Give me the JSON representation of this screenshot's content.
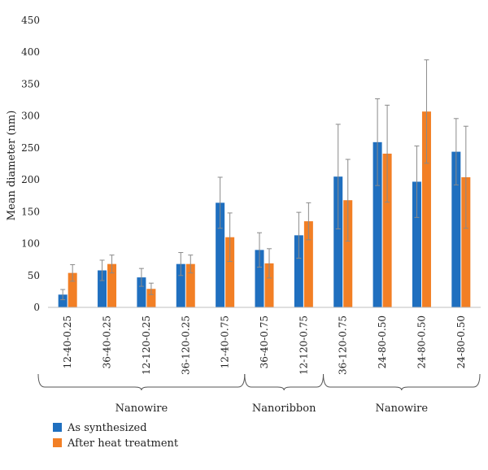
{
  "chart_data": {
    "type": "bar",
    "title": "",
    "xlabel": "",
    "ylabel": "Mean diameter (nm)",
    "ylim": [
      0,
      450
    ],
    "yticks": [
      0,
      50,
      100,
      150,
      200,
      250,
      300,
      350,
      400,
      450
    ],
    "grid": false,
    "legend_position": "bottom-left",
    "categories": [
      "12-40-0.25",
      "36-40-0.25",
      "12-120-0.25",
      "36-120-0.25",
      "12-40-0.75",
      "36-40-0.75",
      "12-120-0.75",
      "36-120-0.75",
      "24-80-0.50",
      "24-80-0.50",
      "24-80-0.50"
    ],
    "series": [
      {
        "name": "As synthesized",
        "color": "#1f6fbf",
        "values": [
          20,
          58,
          47,
          68,
          164,
          90,
          113,
          205,
          259,
          197,
          244
        ],
        "error": [
          8,
          16,
          14,
          18,
          40,
          27,
          36,
          82,
          68,
          56,
          52
        ]
      },
      {
        "name": "After heat treatment",
        "color": "#f27f25",
        "values": [
          54,
          68,
          29,
          68,
          110,
          69,
          135,
          168,
          241,
          307,
          204
        ]
      }
    ],
    "error_after": [
      13,
      14,
      9,
      14,
      38,
      23,
      29,
      64,
      76,
      81,
      80
    ],
    "group_brackets": [
      {
        "label": "Nanowire",
        "start": 0,
        "end": 5
      },
      {
        "label": "Nanoribbon",
        "start": 5,
        "end": 7
      },
      {
        "label": "Nanowire",
        "start": 7,
        "end": 10
      }
    ]
  }
}
